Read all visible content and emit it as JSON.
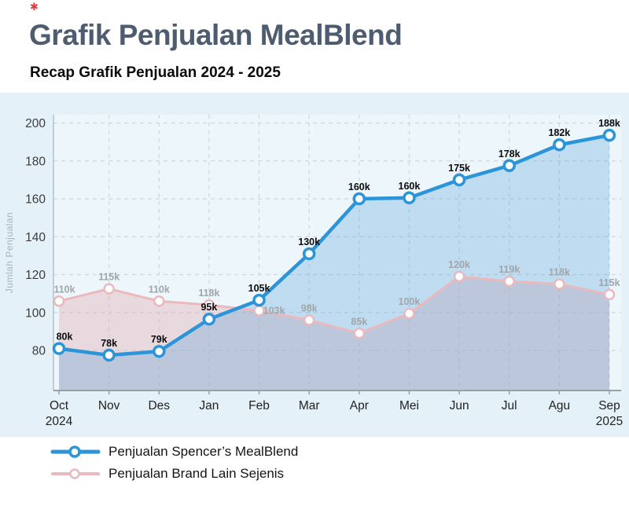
{
  "header": {
    "brand_mark": "✱",
    "accent_color": "#e23b3b",
    "title": "Grafik Penjualan MealBlend",
    "title_color": "#4e5c70",
    "subtitle": "Recap Grafik Penjualan 2024 - 2025",
    "subtitle_color": "#0b0b0b"
  },
  "chart_data": {
    "type": "line",
    "title": "Grafik Penjualan MealBlend",
    "subtitle": "Recap Grafik Penjualan 2024 - 2025",
    "xlabel": "",
    "ylabel": "Jumlah Penjualan",
    "categories": [
      "Oct",
      "Nov",
      "Des",
      "Jan",
      "Feb",
      "Mar",
      "Apr",
      "Mei",
      "Jun",
      "Jul",
      "Agu",
      "Sep"
    ],
    "x_year_first": "2024",
    "x_year_last": "2025",
    "y_ticks": [
      80,
      100,
      120,
      140,
      160,
      180,
      200
    ],
    "ylim": [
      59,
      201
    ],
    "grid": "dashed",
    "grid_color": "#ccd8de",
    "background": "#e4f1f8",
    "plot_background": "#edf6fb",
    "axis_color": "#93a1ab",
    "tick_label_color": "#3c3c3c",
    "legend_position": "bottom-left",
    "series": [
      {
        "name": "Penjualan Spencer’s MealBlend",
        "color": "#2c95d8",
        "fill": "rgba(90,160,215,0.30)",
        "unit": "k",
        "values": [
          80,
          78,
          79,
          95,
          105,
          130,
          160,
          160,
          175,
          178,
          182,
          188
        ],
        "labels": [
          "80k",
          "78k",
          "79k",
          "95k",
          "105k",
          "130k",
          "160k",
          "160k",
          "175k",
          "178k",
          "182k",
          "188k"
        ],
        "plot_values": [
          81,
          77.5,
          79.5,
          96.5,
          106.5,
          131,
          160,
          160.5,
          170,
          177.5,
          188.5,
          193.5
        ],
        "label_color": "#0d0d0d"
      },
      {
        "name": "Penjualan Brand Lain Sejenis",
        "color": "#eab9bd",
        "fill": "rgba(224,172,177,0.38)",
        "unit": "k",
        "values": [
          110,
          115,
          110,
          118,
          103,
          98,
          85,
          100,
          120,
          119,
          118,
          115
        ],
        "labels": [
          "110k",
          "115k",
          "110k",
          "118k",
          "103k",
          "98k",
          "85k",
          "100k",
          "120k",
          "119k",
          "118k",
          "115k"
        ],
        "plot_values": [
          106,
          112.5,
          106,
          104,
          101,
          96,
          89,
          99.5,
          119,
          116.5,
          115,
          109.5
        ],
        "label_color": "#a0a6ab"
      }
    ]
  }
}
